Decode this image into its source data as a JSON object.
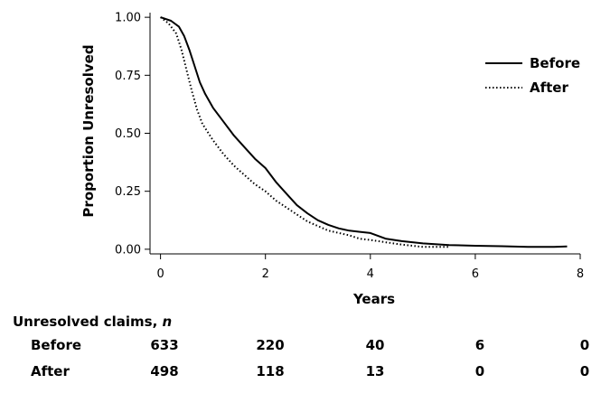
{
  "chart_data": {
    "type": "line",
    "xlabel": "Years",
    "ylabel": "Proportion Unresolved",
    "xlim": [
      -0.2,
      8
    ],
    "ylim": [
      -0.02,
      1.02
    ],
    "x_ticks": [
      "0",
      "2",
      "4",
      "6",
      "8"
    ],
    "y_ticks": [
      "0.00",
      "0.25",
      "0.50",
      "0.75",
      "1.00"
    ],
    "legend_position": "top-right",
    "series": [
      {
        "name": "Before",
        "style": "solid",
        "color": "#000000",
        "x": [
          0,
          0.2,
          0.35,
          0.45,
          0.55,
          0.65,
          0.75,
          0.85,
          1.0,
          1.2,
          1.4,
          1.6,
          1.8,
          2.0,
          2.2,
          2.4,
          2.6,
          2.8,
          3.0,
          3.2,
          3.4,
          3.6,
          3.8,
          4.0,
          4.3,
          4.6,
          5.0,
          5.5,
          6.0,
          6.5,
          7.0,
          7.5,
          7.75
        ],
        "y": [
          1.0,
          0.985,
          0.96,
          0.92,
          0.86,
          0.79,
          0.72,
          0.67,
          0.61,
          0.55,
          0.49,
          0.44,
          0.39,
          0.35,
          0.29,
          0.24,
          0.19,
          0.155,
          0.125,
          0.105,
          0.09,
          0.08,
          0.075,
          0.07,
          0.045,
          0.035,
          0.025,
          0.018,
          0.015,
          0.013,
          0.01,
          0.01,
          0.012
        ]
      },
      {
        "name": "After",
        "style": "dotted",
        "color": "#000000",
        "x": [
          0,
          0.15,
          0.3,
          0.4,
          0.5,
          0.6,
          0.7,
          0.8,
          1.0,
          1.2,
          1.4,
          1.6,
          1.8,
          2.0,
          2.2,
          2.4,
          2.6,
          2.8,
          3.0,
          3.2,
          3.4,
          3.6,
          3.8,
          4.0,
          4.3,
          4.6,
          5.0,
          5.5
        ],
        "y": [
          1.0,
          0.975,
          0.93,
          0.86,
          0.77,
          0.68,
          0.6,
          0.54,
          0.47,
          0.41,
          0.36,
          0.32,
          0.28,
          0.25,
          0.21,
          0.18,
          0.15,
          0.12,
          0.1,
          0.08,
          0.07,
          0.06,
          0.045,
          0.04,
          0.03,
          0.02,
          0.01,
          0.01
        ]
      }
    ],
    "risk_table": {
      "title_prefix": "Unresolved claims, ",
      "title_var": "n",
      "x": [
        0,
        2,
        4,
        6,
        8
      ],
      "rows": [
        {
          "label": "Before",
          "values": [
            "633",
            "220",
            "40",
            "6",
            "0"
          ]
        },
        {
          "label": "After",
          "values": [
            "498",
            "118",
            "13",
            "0",
            "0"
          ]
        }
      ]
    }
  }
}
